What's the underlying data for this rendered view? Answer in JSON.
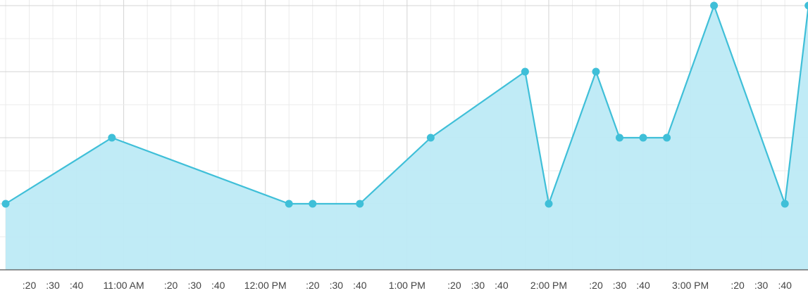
{
  "chart_data": {
    "type": "area",
    "title": "",
    "xlabel": "",
    "ylabel": "",
    "grid": true,
    "legend": "none",
    "x_axis": {
      "unit": "minutes",
      "range": [
        "10:10 AM",
        "3:50 PM"
      ],
      "tick_labels": [
        {
          "t": "10:20 AM",
          "label": ":20"
        },
        {
          "t": "10:30 AM",
          "label": ":30"
        },
        {
          "t": "10:40 AM",
          "label": ":40"
        },
        {
          "t": "11:00 AM",
          "label": "11:00 AM"
        },
        {
          "t": "11:20 AM",
          "label": ":20"
        },
        {
          "t": "11:30 AM",
          "label": ":30"
        },
        {
          "t": "11:40 AM",
          "label": ":40"
        },
        {
          "t": "12:00 PM",
          "label": "12:00 PM"
        },
        {
          "t": "12:20 PM",
          "label": ":20"
        },
        {
          "t": "12:30 PM",
          "label": ":30"
        },
        {
          "t": "12:40 PM",
          "label": ":40"
        },
        {
          "t": "1:00 PM",
          "label": "1:00 PM"
        },
        {
          "t": "1:20 PM",
          "label": ":20"
        },
        {
          "t": "1:30 PM",
          "label": ":30"
        },
        {
          "t": "1:40 PM",
          "label": ":40"
        },
        {
          "t": "2:00 PM",
          "label": "2:00 PM"
        },
        {
          "t": "2:20 PM",
          "label": ":20"
        },
        {
          "t": "2:30 PM",
          "label": ":30"
        },
        {
          "t": "2:40 PM",
          "label": ":40"
        },
        {
          "t": "3:00 PM",
          "label": "3:00 PM"
        },
        {
          "t": "3:20 PM",
          "label": ":20"
        },
        {
          "t": "3:30 PM",
          "label": ":30"
        },
        {
          "t": "3:40 PM",
          "label": ":40"
        }
      ]
    },
    "y_axis": {
      "range": [
        0,
        8
      ],
      "tick_labels_shown": false
    },
    "series": [
      {
        "points": [
          {
            "t": "10:10 AM",
            "y": 2
          },
          {
            "t": "10:55 AM",
            "y": 4
          },
          {
            "t": "12:10 PM",
            "y": 2
          },
          {
            "t": "12:20 PM",
            "y": 2
          },
          {
            "t": "12:40 PM",
            "y": 2
          },
          {
            "t": "1:10 PM",
            "y": 4
          },
          {
            "t": "1:50 PM",
            "y": 6
          },
          {
            "t": "2:00 PM",
            "y": 2
          },
          {
            "t": "2:20 PM",
            "y": 6
          },
          {
            "t": "2:30 PM",
            "y": 4
          },
          {
            "t": "2:40 PM",
            "y": 4
          },
          {
            "t": "2:50 PM",
            "y": 4
          },
          {
            "t": "3:10 PM",
            "y": 8
          },
          {
            "t": "3:40 PM",
            "y": 2
          },
          {
            "t": "3:50 PM",
            "y": 8
          }
        ]
      }
    ],
    "colors": {
      "line": "#3fbfd8",
      "fill": "#bdeaf5",
      "grid_minor": "#ebebeb",
      "grid_major": "#d4d4d4",
      "axis": "#555555"
    }
  }
}
